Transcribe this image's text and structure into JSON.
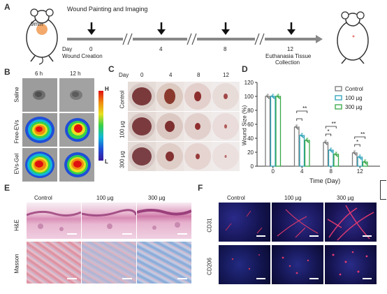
{
  "panels": {
    "A": {
      "letter": "A",
      "mouse_size": "9mm",
      "top_label": "Wound Painting and Imaging",
      "day_label": "Day",
      "days": [
        "0",
        "4",
        "8",
        "12"
      ],
      "start_note": "Wound Creation",
      "end_note_line1": "Euthanasia Tissue",
      "end_note_line2": "Collection"
    },
    "B": {
      "letter": "B",
      "times": [
        "6 h",
        "12 h"
      ],
      "rows": [
        "Saline",
        "Free-EVs",
        "EVs-Gel"
      ],
      "colorbar_high": "H",
      "colorbar_low": "L"
    },
    "C": {
      "letter": "C",
      "day_label": "Day",
      "days": [
        "0",
        "4",
        "8",
        "12"
      ],
      "rows": [
        "Control",
        "100 µg",
        "300 µg"
      ]
    },
    "D": {
      "letter": "D",
      "sig": "**",
      "sig_single": "*"
    },
    "E": {
      "letter": "E",
      "cols": [
        "Control",
        "100 µg",
        "300 µg"
      ],
      "rows": [
        "H&E",
        "Masson"
      ]
    },
    "F": {
      "letter": "F",
      "cols": [
        "Control",
        "100 µg",
        "300 µg"
      ],
      "rows": [
        "CD31",
        "CD206"
      ]
    }
  },
  "chart_data": {
    "type": "bar",
    "title": "",
    "xlabel": "Time (Day)",
    "ylabel": "Wound Size (%)",
    "categories": [
      "0",
      "4",
      "8",
      "12"
    ],
    "ylim": [
      0,
      120
    ],
    "yticks": [
      "0",
      "20",
      "40",
      "60",
      "80",
      "100",
      "120"
    ],
    "legend_position": "top-right",
    "series": [
      {
        "name": "Control",
        "color": "#7a7a7a",
        "values": [
          100,
          56,
          34,
          19
        ]
      },
      {
        "name": "100 µg",
        "color": "#2aa0b8",
        "values": [
          100,
          44,
          23,
          13
        ]
      },
      {
        "name": "300 µg",
        "color": "#35a845",
        "values": [
          100,
          37,
          17,
          6
        ]
      }
    ]
  }
}
